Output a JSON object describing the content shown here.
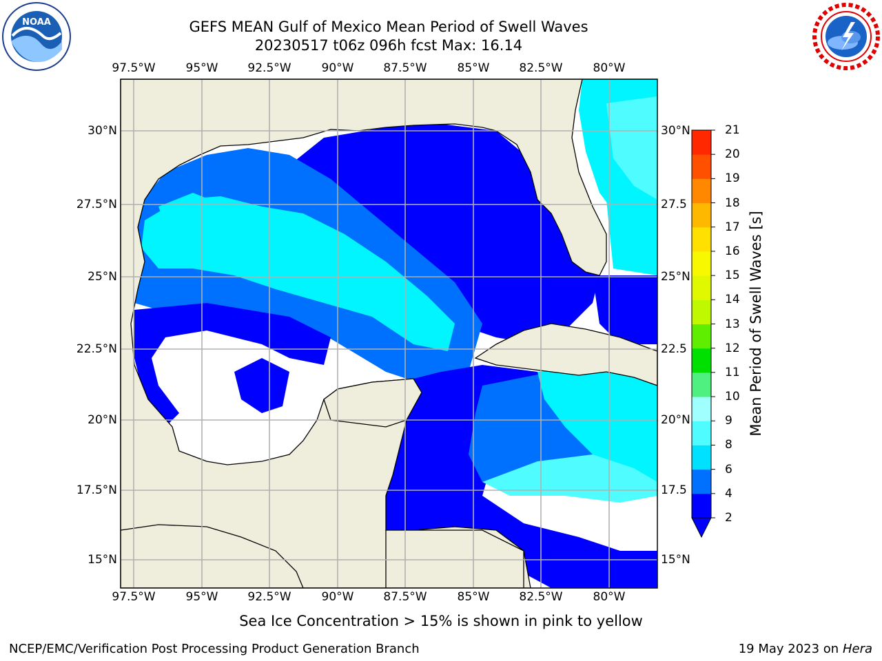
{
  "header": {
    "title_line1": "GEFS MEAN Gulf of Mexico Mean Period of Swell Waves",
    "title_line2": "20230517 t06z 096h fcst   Max: 16.14"
  },
  "map": {
    "lon_labels": [
      "97.5°W",
      "95°W",
      "92.5°W",
      "90°W",
      "87.5°W",
      "85°W",
      "82.5°W",
      "80°W"
    ],
    "lat_labels_left": [
      "30°N",
      "27.5°N",
      "25°N",
      "22.5°N",
      "20°N",
      "17.5°N",
      "15°N"
    ],
    "lat_labels_right": [
      "30°N",
      "27.5",
      "25°N",
      "22.5",
      "20°N",
      "17.5",
      "15°N"
    ],
    "land_color": "#efeedd",
    "grid_color": "#b0b0b0"
  },
  "colorbar": {
    "label": "Mean Period of Swell Waves [s]",
    "ticks": [
      "2",
      "4",
      "6",
      "8",
      "9",
      "10",
      "11",
      "12",
      "13",
      "14",
      "15",
      "16",
      "17",
      "18",
      "19",
      "20",
      "21"
    ],
    "colors": [
      "#0000ff",
      "#0070ff",
      "#00e0ff",
      "#4ffcff",
      "#a0ffff",
      "#50f080",
      "#00e000",
      "#60ee00",
      "#c0f800",
      "#e0f800",
      "#f8f800",
      "#ffe000",
      "#ffb800",
      "#ff8800",
      "#ff5000",
      "#ff2800",
      "#ff0000"
    ]
  },
  "footer": {
    "note": "Sea Ice Concentration > 15% is shown in pink to yellow",
    "credit": "NCEP/EMC/Verification Post Processing Product Generation Branch",
    "date": "19 May 2023 on",
    "machine": "Hera"
  },
  "logos": {
    "left": "noaa-logo",
    "right": "nws-logo"
  }
}
